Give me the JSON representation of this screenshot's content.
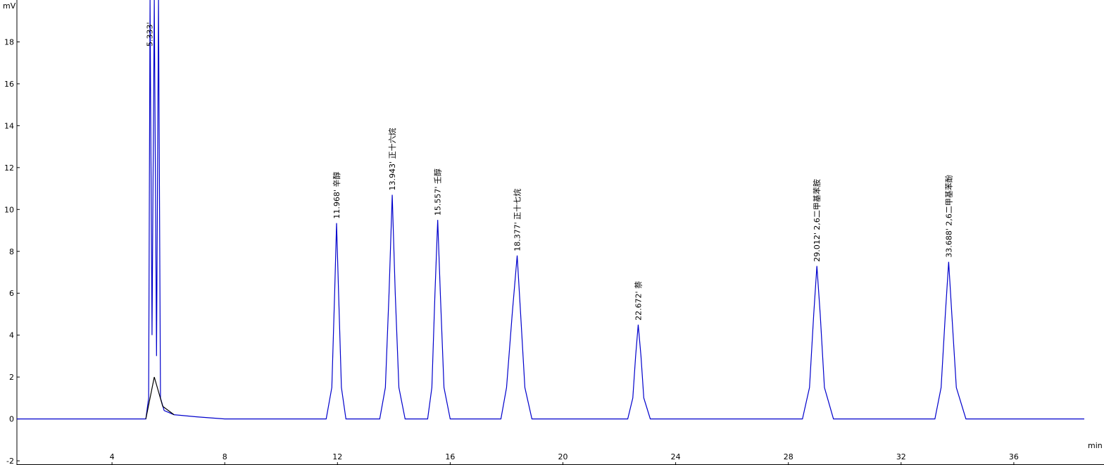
{
  "chart_data": {
    "type": "line",
    "y_label": "mV",
    "x_label": "min",
    "xlim": [
      0.625,
      39.2
    ],
    "ylim": [
      -2.2,
      20
    ],
    "xticks": [
      4,
      8,
      12,
      16,
      20,
      24,
      28,
      32,
      36
    ],
    "yticks": [
      -2,
      0,
      2,
      4,
      6,
      8,
      10,
      12,
      14,
      16,
      18
    ],
    "grid": false,
    "series": [
      {
        "color": "#0000cc",
        "x": [
          0.625,
          5.2,
          5.3,
          5.35,
          5.42,
          5.5,
          5.58,
          5.65,
          5.72,
          5.85,
          6.2,
          7,
          8,
          11.6,
          11.8,
          11.9,
          11.968,
          12.04,
          12.14,
          12.3,
          13.5,
          13.7,
          13.83,
          13.943,
          14.05,
          14.18,
          14.4,
          15.2,
          15.35,
          15.46,
          15.557,
          15.65,
          15.78,
          16,
          17.8,
          18.0,
          18.2,
          18.377,
          18.5,
          18.65,
          18.9,
          22.3,
          22.48,
          22.58,
          22.672,
          22.77,
          22.87,
          23.1,
          28.5,
          28.75,
          28.9,
          29.012,
          29.13,
          29.28,
          29.6,
          33.2,
          33.42,
          33.57,
          33.688,
          33.8,
          33.96,
          34.3,
          38.5
        ],
        "values": [
          0,
          0,
          1,
          20,
          4,
          20,
          3,
          20,
          1,
          0.4,
          0.2,
          0.1,
          0,
          0,
          1.5,
          6,
          9.35,
          6,
          1.5,
          0,
          0,
          1.5,
          6,
          10.7,
          6,
          1.5,
          0,
          0,
          1.5,
          6,
          9.5,
          6,
          1.5,
          0,
          0,
          1.5,
          5,
          7.8,
          5,
          1.5,
          0,
          0,
          1,
          3,
          4.5,
          3,
          1,
          0,
          0,
          1.5,
          5,
          7.3,
          5,
          1.5,
          0,
          0,
          1.5,
          5,
          7.5,
          5,
          1.5,
          0,
          0
        ]
      },
      {
        "color": "#000000",
        "x": [
          5.2,
          5.5,
          5.8,
          6.2
        ],
        "values": [
          0,
          2,
          0.6,
          0.2
        ]
      }
    ],
    "annotations": [
      {
        "x": 5.333,
        "text": "5.333'"
      },
      {
        "x": 11.968,
        "text": "11.968'  辛醇"
      },
      {
        "x": 13.943,
        "text": "13.943'  正十六烷"
      },
      {
        "x": 15.557,
        "text": "15.557'  壬醇"
      },
      {
        "x": 18.377,
        "text": "18.377'  正十七烷"
      },
      {
        "x": 22.672,
        "text": "22.672'  萘"
      },
      {
        "x": 29.012,
        "text": "29.012'  2,6二甲基苯胺"
      },
      {
        "x": 33.688,
        "text": "33.688'  2,6二甲基苯酚"
      }
    ]
  }
}
